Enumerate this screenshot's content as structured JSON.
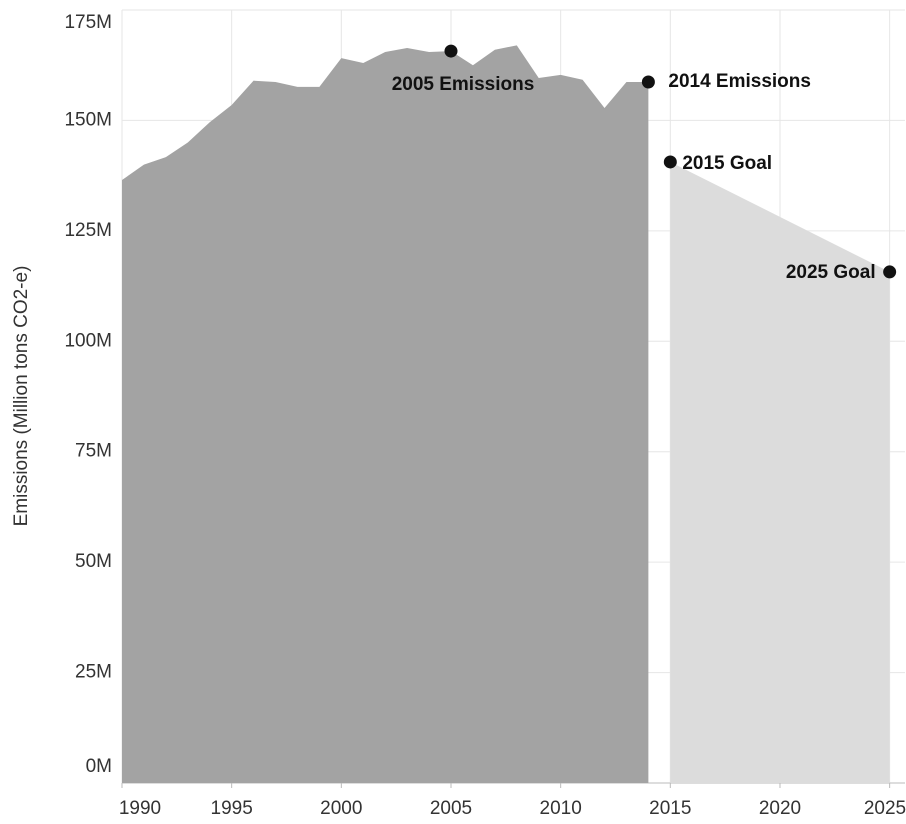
{
  "chart_data": {
    "type": "area",
    "y_label": "Emissions (Million tons CO2-e)",
    "series": [
      {
        "color": "#a3a3a3",
        "x": [
          1990,
          1991,
          1992,
          1993,
          1994,
          1995,
          1996,
          1997,
          1998,
          1999,
          2000,
          2001,
          2002,
          2003,
          2004,
          2005,
          2006,
          2007,
          2008,
          2009,
          2010,
          2011,
          2012,
          2013,
          2014
        ],
        "values": [
          136500000,
          140000000,
          141700000,
          145000000,
          149600000,
          153500000,
          159000000,
          158700000,
          157600000,
          157600000,
          164100000,
          163000000,
          165500000,
          166400000,
          165500000,
          165700000,
          162500000,
          166000000,
          167000000,
          159600000,
          160300000,
          159200000,
          152800000,
          158700000,
          158700000
        ]
      },
      {
        "color": "#dcdcdc",
        "x": [
          2015,
          2025
        ],
        "values": [
          140600000,
          115700000
        ]
      }
    ],
    "annotations": [
      {
        "label": "2005 Emissions",
        "x": 2005,
        "y": 165700000
      },
      {
        "label": "2014 Emissions",
        "x": 2014,
        "y": 158700000
      },
      {
        "label": "2015 Goal",
        "x": 2015,
        "y": 140600000
      },
      {
        "label": "2025 Goal",
        "x": 2025,
        "y": 115700000
      }
    ],
    "xlim": [
      1990,
      2025.7
    ],
    "xticks": [
      1990,
      1995,
      2000,
      2005,
      2010,
      2015,
      2020,
      2025
    ],
    "ylim": [
      0,
      175000000
    ],
    "yticks": [
      {
        "value": 0,
        "label": "0M"
      },
      {
        "value": 25000000,
        "label": "25M"
      },
      {
        "value": 50000000,
        "label": "50M"
      },
      {
        "value": 75000000,
        "label": "75M"
      },
      {
        "value": 100000000,
        "label": "100M"
      },
      {
        "value": 125000000,
        "label": "125M"
      },
      {
        "value": 150000000,
        "label": "150M"
      },
      {
        "value": 175000000,
        "label": "175M"
      }
    ],
    "grid": true
  }
}
